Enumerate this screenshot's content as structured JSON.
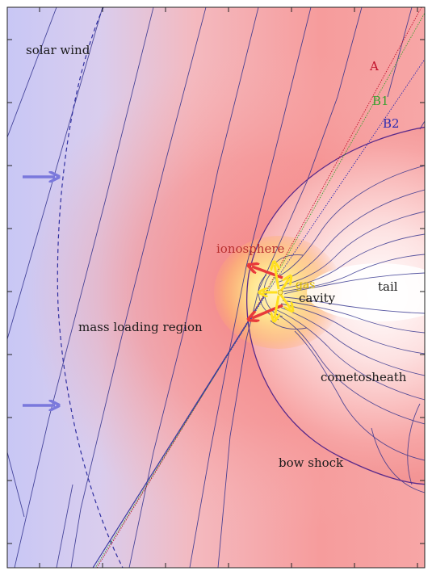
{
  "labels": {
    "solar_wind": "solar wind",
    "A": "A",
    "B1": "B1",
    "B2": "B2",
    "ionosphere": "ionosphere",
    "gas": "gas",
    "cavity": "cavity",
    "tail": "tail",
    "mass_loading_region": "mass loading region",
    "cometosheath": "cometosheath",
    "bow_shock": "bow shock"
  },
  "colors": {
    "solar_wind_bg": "#c9c8f4",
    "mass_loading_bg": "#f7b3b3",
    "sheath_bg": "#f58a8a",
    "tail_bg": "#ffffff",
    "glow_core": "#ffe6a0",
    "field_line": "#2f2f8c",
    "arrow_solar_wind": "#7a78dc",
    "arrow_ionosphere": "#e83a3a",
    "arrow_gas": "#ffe020",
    "line_A": "#c0102a",
    "line_B1": "#3aa030",
    "line_B2": "#2a2ab0",
    "label_A": "#c0102a",
    "label_B1": "#3aa030",
    "label_B2": "#2a2ab0",
    "label_ionosphere": "#b83030",
    "label_gas": "#d8b800",
    "label_default": "#1a1a1a"
  },
  "icons": {
    "solar_wind_arrow": "right-arrow-icon",
    "ionosphere_arrow": "red-arrow-icon",
    "gas_arrow": "yellow-arrow-icon"
  }
}
